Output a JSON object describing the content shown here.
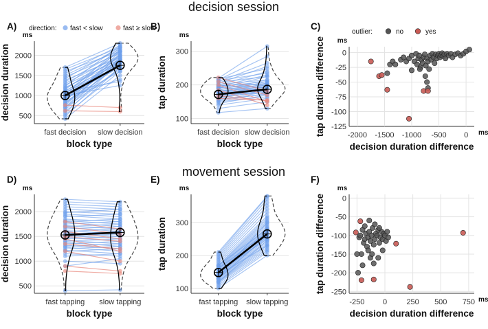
{
  "figure": {
    "session_titles": [
      "decision session",
      "movement session"
    ],
    "legend_direction": {
      "title": "direction:",
      "items": [
        "fast < slow",
        "fast ≥ slow"
      ]
    },
    "legend_outlier": {
      "title": "outlier:",
      "items": [
        "no",
        "yes"
      ]
    },
    "colors": {
      "blue": "#6d9eeb",
      "red": "#e8877c",
      "gray": "#555555",
      "black": "#000000",
      "outlierRed": "#c85a54"
    }
  },
  "chart_data": [
    {
      "panel": "A)",
      "type": "line",
      "unit": "ms",
      "xlabel": "block type",
      "ylabel": "decision duration",
      "categories": [
        "fast decision",
        "slow decision"
      ],
      "ylim": [
        300,
        2350
      ],
      "yticks": [
        500,
        1000,
        1500,
        2000
      ],
      "series_blue_pairs": [
        [
          420,
          1500
        ],
        [
          480,
          1700
        ],
        [
          520,
          1600
        ],
        [
          560,
          1850
        ],
        [
          600,
          1700
        ],
        [
          640,
          1900
        ],
        [
          680,
          2050
        ],
        [
          700,
          1650
        ],
        [
          720,
          1800
        ],
        [
          750,
          1950
        ],
        [
          780,
          2100
        ],
        [
          800,
          1750
        ],
        [
          820,
          1850
        ],
        [
          850,
          1600
        ],
        [
          870,
          2000
        ],
        [
          900,
          1800
        ],
        [
          920,
          1900
        ],
        [
          950,
          2150
        ],
        [
          980,
          1700
        ],
        [
          1000,
          1850
        ],
        [
          1020,
          2200
        ],
        [
          1050,
          1900
        ],
        [
          1080,
          1750
        ],
        [
          1100,
          2000
        ],
        [
          1120,
          1800
        ],
        [
          1150,
          2100
        ],
        [
          1180,
          1950
        ],
        [
          1200,
          1850
        ],
        [
          1230,
          2250
        ],
        [
          1260,
          1900
        ],
        [
          1300,
          2000
        ],
        [
          1340,
          2100
        ],
        [
          1380,
          1950
        ],
        [
          1420,
          2200
        ],
        [
          1460,
          2050
        ],
        [
          1500,
          2150
        ],
        [
          1550,
          2250
        ],
        [
          1600,
          2100
        ],
        [
          1650,
          2200
        ],
        [
          1700,
          2300
        ],
        [
          1000,
          1250
        ],
        [
          950,
          1400
        ],
        [
          1100,
          1350
        ]
      ],
      "series_red_pairs": [
        [
          760,
          700
        ],
        [
          620,
          600
        ]
      ],
      "mean": [
        1000,
        1750
      ]
    },
    {
      "panel": "B)",
      "type": "line",
      "unit": "ms",
      "xlabel": "block type",
      "ylabel": "tap duration",
      "categories": [
        "fast decision",
        "slow decision"
      ],
      "ylim": [
        85,
        330
      ],
      "yticks": [
        100,
        200,
        300
      ],
      "series_blue_pairs": [
        [
          118,
          130
        ],
        [
          130,
          150
        ],
        [
          140,
          160
        ],
        [
          145,
          170
        ],
        [
          150,
          165
        ],
        [
          152,
          175
        ],
        [
          155,
          180
        ],
        [
          158,
          172
        ],
        [
          160,
          185
        ],
        [
          162,
          190
        ],
        [
          165,
          178
        ],
        [
          167,
          195
        ],
        [
          168,
          182
        ],
        [
          170,
          200
        ],
        [
          172,
          188
        ],
        [
          173,
          176
        ],
        [
          175,
          205
        ],
        [
          176,
          190
        ],
        [
          178,
          183
        ],
        [
          180,
          210
        ],
        [
          181,
          195
        ],
        [
          183,
          188
        ],
        [
          185,
          215
        ],
        [
          186,
          200
        ],
        [
          188,
          193
        ],
        [
          190,
          225
        ],
        [
          191,
          205
        ],
        [
          193,
          198
        ],
        [
          195,
          230
        ],
        [
          196,
          210
        ],
        [
          198,
          203
        ],
        [
          200,
          240
        ],
        [
          202,
          215
        ],
        [
          205,
          255
        ],
        [
          208,
          225
        ],
        [
          210,
          265
        ],
        [
          213,
          235
        ],
        [
          215,
          285
        ],
        [
          218,
          248
        ],
        [
          220,
          315
        ]
      ],
      "series_red_pairs": [
        [
          185,
          140
        ],
        [
          200,
          150
        ],
        [
          168,
          153
        ],
        [
          210,
          170
        ],
        [
          160,
          155
        ],
        [
          222,
          182
        ]
      ],
      "mean": [
        172,
        187
      ]
    },
    {
      "panel": "C)",
      "type": "scatter",
      "unit": "ms",
      "xlabel": "decision duration difference",
      "ylabel": "tap duration difference",
      "xlim": [
        -2150,
        150
      ],
      "ylim": [
        -125,
        10
      ],
      "xticks": [
        -2000,
        -1500,
        -1000,
        -500,
        0
      ],
      "yticks": [
        -125,
        -100,
        -75,
        -50,
        -25,
        0
      ],
      "points_no": [
        [
          -1450,
          -35
        ],
        [
          -1400,
          -20
        ],
        [
          -1350,
          -15
        ],
        [
          -1300,
          -20
        ],
        [
          -1200,
          -12
        ],
        [
          -1150,
          -8
        ],
        [
          -1100,
          -15
        ],
        [
          -1050,
          -10
        ],
        [
          -1000,
          -5
        ],
        [
          -950,
          -15
        ],
        [
          -920,
          -2
        ],
        [
          -900,
          -20
        ],
        [
          -880,
          -10
        ],
        [
          -860,
          -5
        ],
        [
          -840,
          -25
        ],
        [
          -820,
          -12
        ],
        [
          -800,
          -18
        ],
        [
          -780,
          -8
        ],
        [
          -760,
          -3
        ],
        [
          -740,
          -22
        ],
        [
          -720,
          -10
        ],
        [
          -700,
          -15
        ],
        [
          -680,
          -28
        ],
        [
          -660,
          -5
        ],
        [
          -640,
          -12
        ],
        [
          -620,
          -2
        ],
        [
          -600,
          -8
        ],
        [
          -580,
          -18
        ],
        [
          -560,
          -3
        ],
        [
          -540,
          -10
        ],
        [
          -520,
          -5
        ],
        [
          -500,
          -2
        ],
        [
          -480,
          -8
        ],
        [
          -460,
          -4
        ],
        [
          -440,
          -1
        ],
        [
          -420,
          -6
        ],
        [
          -400,
          -3
        ],
        [
          -380,
          -10
        ],
        [
          -350,
          -2
        ],
        [
          -320,
          -5
        ],
        [
          -280,
          -2
        ],
        [
          -250,
          -8
        ],
        [
          -200,
          -3
        ],
        [
          -150,
          -1
        ],
        [
          -100,
          -5
        ],
        [
          -50,
          -2
        ],
        [
          0,
          2
        ],
        [
          60,
          5
        ],
        [
          -750,
          -40
        ],
        [
          -720,
          -50
        ],
        [
          -700,
          -60
        ],
        [
          -1000,
          -30
        ],
        [
          -850,
          -28
        ]
      ],
      "points_yes": [
        [
          -1750,
          -15
        ],
        [
          -1600,
          -40
        ],
        [
          -1550,
          -38
        ],
        [
          -1450,
          -63
        ],
        [
          -1050,
          -112
        ],
        [
          -780,
          -65
        ],
        [
          -700,
          -65
        ]
      ]
    },
    {
      "panel": "D)",
      "type": "line",
      "unit": "ms",
      "xlabel": "block type",
      "ylabel": "decision duration",
      "categories": [
        "fast tapping",
        "slow tapping"
      ],
      "ylim": [
        350,
        2350
      ],
      "yticks": [
        500,
        1000,
        1500,
        2000
      ],
      "series_blue_pairs": [
        [
          2250,
          2200
        ],
        [
          2200,
          2150
        ],
        [
          2150,
          2100
        ],
        [
          2100,
          2050
        ],
        [
          2050,
          2000
        ],
        [
          2000,
          1950
        ],
        [
          1980,
          2050
        ],
        [
          1950,
          1900
        ],
        [
          1920,
          1850
        ],
        [
          1900,
          1950
        ],
        [
          1850,
          1800
        ],
        [
          1820,
          1750
        ],
        [
          1800,
          1850
        ],
        [
          1780,
          1700
        ],
        [
          1750,
          1800
        ],
        [
          1720,
          1650
        ],
        [
          1700,
          1750
        ],
        [
          1680,
          1600
        ],
        [
          1650,
          1700
        ],
        [
          1620,
          1550
        ],
        [
          1600,
          1650
        ],
        [
          1580,
          1500
        ],
        [
          1550,
          1600
        ],
        [
          1520,
          1450
        ],
        [
          1500,
          1550
        ],
        [
          1480,
          1400
        ],
        [
          1450,
          1500
        ],
        [
          1420,
          1350
        ],
        [
          1400,
          1450
        ],
        [
          1380,
          1300
        ],
        [
          1350,
          1400
        ],
        [
          1320,
          1250
        ],
        [
          1300,
          1350
        ],
        [
          1280,
          1200
        ],
        [
          1250,
          1300
        ],
        [
          1220,
          1150
        ],
        [
          1200,
          1250
        ],
        [
          1150,
          1100
        ],
        [
          1100,
          1150
        ],
        [
          1000,
          950
        ],
        [
          900,
          1050
        ],
        [
          400,
          420
        ]
      ],
      "series_red_pairs": [
        [
          1800,
          1650
        ],
        [
          1700,
          1550
        ],
        [
          1600,
          1450
        ],
        [
          1500,
          1400
        ],
        [
          1450,
          1200
        ],
        [
          1350,
          1250
        ],
        [
          1200,
          1000
        ],
        [
          900,
          800
        ],
        [
          800,
          750
        ]
      ],
      "mean": [
        1530,
        1580
      ]
    },
    {
      "panel": "E)",
      "type": "line",
      "unit": "ms",
      "xlabel": "block type",
      "ylabel": "tap duration",
      "categories": [
        "fast tapping",
        "slow tapping"
      ],
      "ylim": [
        85,
        385
      ],
      "yticks": [
        100,
        200,
        300
      ],
      "series_blue_pairs": [
        [
          100,
          200
        ],
        [
          105,
          210
        ],
        [
          110,
          215
        ],
        [
          115,
          220
        ],
        [
          118,
          225
        ],
        [
          120,
          230
        ],
        [
          122,
          235
        ],
        [
          125,
          240
        ],
        [
          128,
          245
        ],
        [
          130,
          250
        ],
        [
          132,
          255
        ],
        [
          135,
          258
        ],
        [
          138,
          262
        ],
        [
          140,
          265
        ],
        [
          142,
          270
        ],
        [
          145,
          272
        ],
        [
          148,
          275
        ],
        [
          150,
          278
        ],
        [
          152,
          282
        ],
        [
          155,
          285
        ],
        [
          158,
          290
        ],
        [
          160,
          295
        ],
        [
          162,
          300
        ],
        [
          165,
          305
        ],
        [
          168,
          310
        ],
        [
          170,
          315
        ],
        [
          175,
          320
        ],
        [
          180,
          330
        ],
        [
          185,
          340
        ],
        [
          190,
          350
        ],
        [
          195,
          360
        ],
        [
          200,
          370
        ],
        [
          205,
          378
        ],
        [
          210,
          380
        ],
        [
          140,
          230
        ],
        [
          130,
          260
        ],
        [
          160,
          270
        ],
        [
          150,
          250
        ],
        [
          170,
          280
        ],
        [
          120,
          245
        ],
        [
          135,
          300
        ]
      ],
      "series_red_pairs": [],
      "mean": [
        148,
        265
      ]
    },
    {
      "panel": "F)",
      "type": "scatter",
      "unit": "ms",
      "xlabel": "decision duration difference",
      "ylabel": "tap duration difference",
      "xlim": [
        -320,
        800
      ],
      "ylim": [
        -255,
        10
      ],
      "xticks": [
        -250,
        0,
        250,
        500,
        750
      ],
      "yticks": [
        -250,
        -200,
        -150,
        -100,
        -50,
        0
      ],
      "points_no": [
        [
          -230,
          -105
        ],
        [
          -220,
          -100
        ],
        [
          -210,
          -150
        ],
        [
          -200,
          -85
        ],
        [
          -190,
          -120
        ],
        [
          -180,
          -110
        ],
        [
          -170,
          -95
        ],
        [
          -160,
          -130
        ],
        [
          -150,
          -105
        ],
        [
          -140,
          -90
        ],
        [
          -130,
          -115
        ],
        [
          -120,
          -100
        ],
        [
          -110,
          -80
        ],
        [
          -100,
          -125
        ],
        [
          -90,
          -110
        ],
        [
          -80,
          -95
        ],
        [
          -70,
          -100
        ],
        [
          -60,
          -85
        ],
        [
          -50,
          -120
        ],
        [
          -40,
          -105
        ],
        [
          -30,
          -90
        ],
        [
          -20,
          -110
        ],
        [
          -10,
          -95
        ],
        [
          0,
          -100
        ],
        [
          10,
          -115
        ],
        [
          20,
          -90
        ],
        [
          30,
          -105
        ],
        [
          -240,
          -200
        ],
        [
          -250,
          -150
        ],
        [
          -150,
          -140
        ],
        [
          -130,
          -160
        ],
        [
          -100,
          -175
        ],
        [
          -60,
          -160
        ],
        [
          -20,
          -140
        ],
        [
          -180,
          -75
        ],
        [
          -140,
          -60
        ],
        [
          -90,
          -70
        ],
        [
          -200,
          -180
        ],
        [
          -50,
          -80
        ],
        [
          -115,
          -150
        ]
      ],
      "points_yes": [
        [
          -260,
          -92
        ],
        [
          -220,
          -62
        ],
        [
          -210,
          -220
        ],
        [
          -100,
          -218
        ],
        [
          100,
          -122
        ],
        [
          225,
          -238
        ],
        [
          700,
          -93
        ]
      ]
    }
  ]
}
